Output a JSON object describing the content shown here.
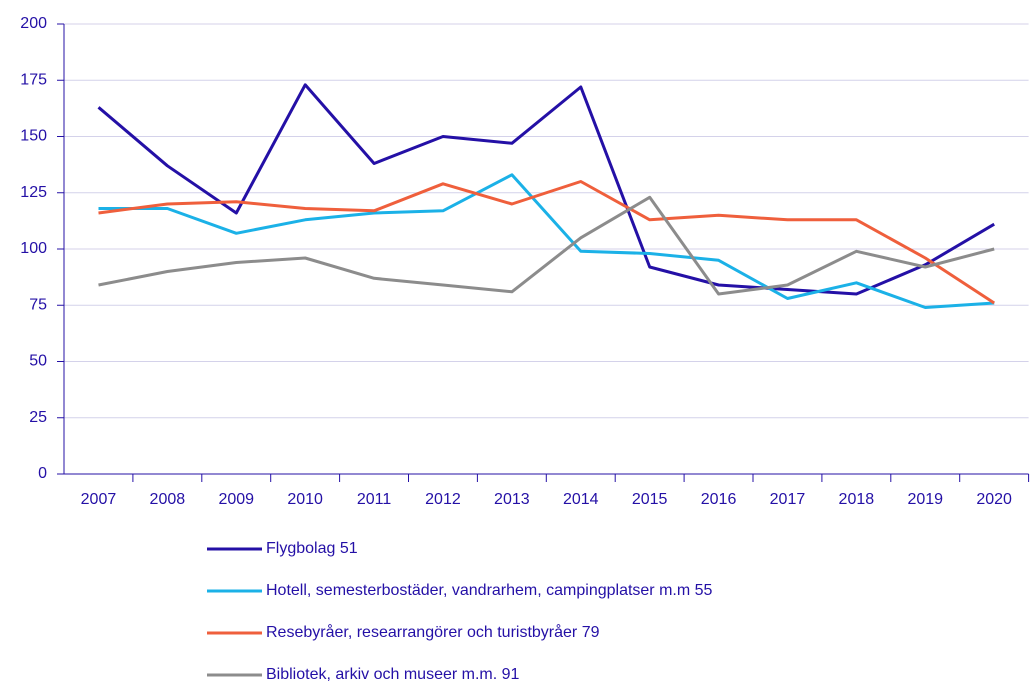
{
  "chart_data": {
    "type": "line",
    "categories": [
      "2007",
      "2008",
      "2009",
      "2010",
      "2011",
      "2012",
      "2013",
      "2014",
      "2015",
      "2016",
      "2017",
      "2018",
      "2019",
      "2020"
    ],
    "series": [
      {
        "name": "Flygbolag 51",
        "color": "#2410a6",
        "values": [
          163,
          137,
          116,
          173,
          138,
          150,
          147,
          172,
          92,
          84,
          82,
          80,
          93,
          111
        ]
      },
      {
        "name": "Hotell, semesterbostäder, vandrarhem, campingplatser m.m 55",
        "color": "#1bb1e7",
        "values": [
          118,
          118,
          107,
          113,
          116,
          117,
          133,
          99,
          98,
          95,
          78,
          85,
          74,
          76
        ]
      },
      {
        "name": "Resebyråer, researrangörer och turistbyråer 79",
        "color": "#ef5f3c",
        "values": [
          116,
          120,
          121,
          118,
          117,
          129,
          120,
          130,
          113,
          115,
          113,
          113,
          96,
          76
        ]
      },
      {
        "name": "Bibliotek, arkiv och museer m.m. 91",
        "color": "#8c8c8c",
        "values": [
          84,
          90,
          94,
          96,
          87,
          84,
          81,
          105,
          123,
          80,
          84,
          99,
          92,
          100
        ]
      }
    ],
    "ylim": [
      0,
      200
    ],
    "yticks": [
      0,
      25,
      50,
      75,
      100,
      125,
      150,
      175,
      200
    ],
    "grid": true
  }
}
